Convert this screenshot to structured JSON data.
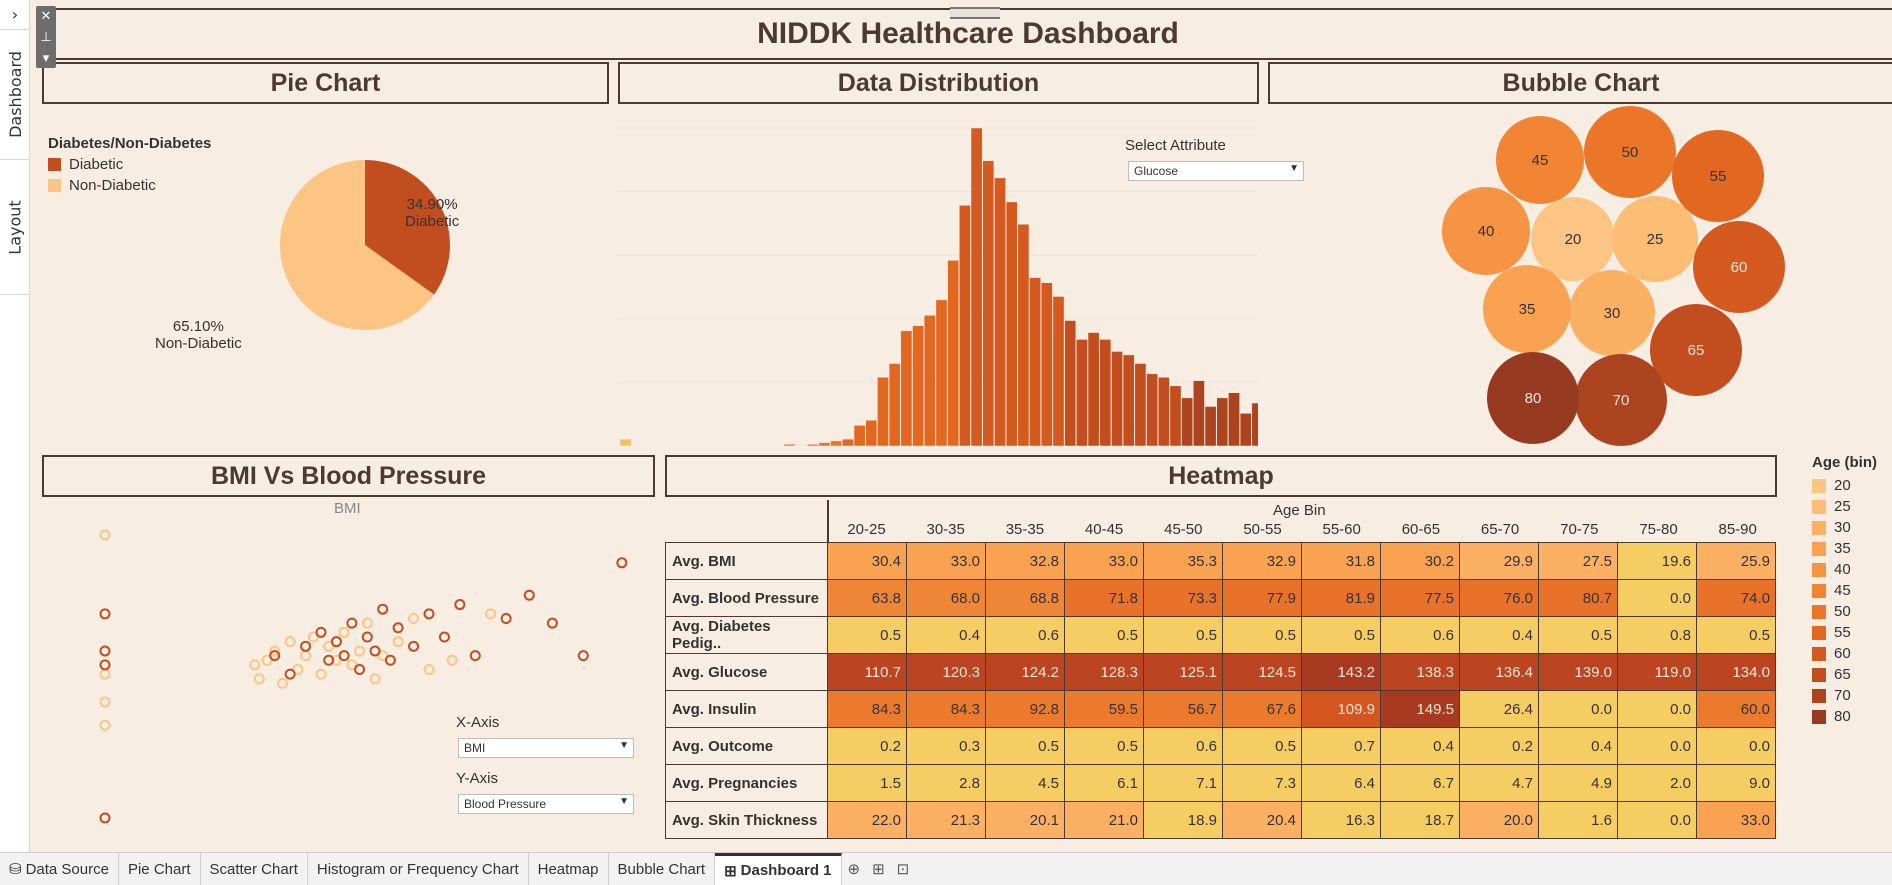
{
  "dashboard": {
    "title": "NIDDK Healthcare Dashboard",
    "rail": {
      "chevron": "›",
      "dashboard_tab": "Dashboard",
      "layout_tab": "Layout"
    },
    "floatbar": {
      "close": "✕",
      "pin": "⊥",
      "more": "▾"
    }
  },
  "pie": {
    "section_title": "Pie Chart",
    "legend_title": "Diabetes/Non-Diabetes",
    "legend": [
      {
        "label": "Diabetic",
        "color": "#c24e1f"
      },
      {
        "label": "Non-Diabetic",
        "color": "#fdc583"
      }
    ],
    "label_diabetic_pct": "34.90%",
    "label_diabetic": "Diabetic",
    "label_non_pct": "65.10%",
    "label_non": "Non-Diabetic"
  },
  "distribution": {
    "section_title": "Data Distribution",
    "select_label": "Select Attribute",
    "select_value": "Glucose"
  },
  "bubble": {
    "section_title": "Bubble Chart"
  },
  "scatter": {
    "section_title": "BMI Vs Blood Pressure",
    "axis_title": "BMI",
    "x_label": "X-Axis",
    "x_value": "BMI",
    "y_label": "Y-Axis",
    "y_value": "Blood Pressure"
  },
  "heatmap": {
    "section_title": "Heatmap",
    "column_header": "Age Bin",
    "columns": [
      "20-25",
      "30-35",
      "35-35",
      "40-45",
      "45-50",
      "50-55",
      "55-60",
      "60-65",
      "65-70",
      "70-75",
      "75-80",
      "85-90"
    ],
    "rows": [
      {
        "label": "Avg. BMI",
        "values": [
          "30.4",
          "33.0",
          "32.8",
          "33.0",
          "35.3",
          "32.9",
          "31.8",
          "30.2",
          "29.9",
          "27.5",
          "19.6",
          "25.9"
        ]
      },
      {
        "label": "Avg. Blood Pressure",
        "values": [
          "63.8",
          "68.0",
          "68.8",
          "71.8",
          "73.3",
          "77.9",
          "81.9",
          "77.5",
          "76.0",
          "80.7",
          "0.0",
          "74.0"
        ]
      },
      {
        "label": "Avg. Diabetes Pedig..",
        "values": [
          "0.5",
          "0.4",
          "0.6",
          "0.5",
          "0.5",
          "0.5",
          "0.5",
          "0.6",
          "0.4",
          "0.5",
          "0.8",
          "0.5"
        ]
      },
      {
        "label": "Avg. Glucose",
        "values": [
          "110.7",
          "120.3",
          "124.2",
          "128.3",
          "125.1",
          "124.5",
          "143.2",
          "138.3",
          "136.4",
          "139.0",
          "119.0",
          "134.0"
        ]
      },
      {
        "label": "Avg. Insulin",
        "values": [
          "84.3",
          "84.3",
          "92.8",
          "59.5",
          "56.7",
          "67.6",
          "109.9",
          "149.5",
          "26.4",
          "0.0",
          "0.0",
          "60.0"
        ]
      },
      {
        "label": "Avg. Outcome",
        "values": [
          "0.2",
          "0.3",
          "0.5",
          "0.5",
          "0.6",
          "0.5",
          "0.7",
          "0.4",
          "0.2",
          "0.4",
          "0.0",
          "0.0"
        ]
      },
      {
        "label": "Avg. Pregnancies",
        "values": [
          "1.5",
          "2.8",
          "4.5",
          "6.1",
          "7.1",
          "7.3",
          "6.4",
          "6.7",
          "4.7",
          "4.9",
          "2.0",
          "9.0"
        ]
      },
      {
        "label": "Avg. Skin Thickness",
        "values": [
          "22.0",
          "21.3",
          "20.1",
          "21.0",
          "18.9",
          "20.4",
          "16.3",
          "18.7",
          "20.0",
          "1.6",
          "0.0",
          "33.0"
        ]
      }
    ]
  },
  "age_legend": {
    "title": "Age (bin)",
    "items": [
      {
        "label": "20",
        "color": "#fdc583"
      },
      {
        "label": "25",
        "color": "#fcbd74"
      },
      {
        "label": "30",
        "color": "#fbb064"
      },
      {
        "label": "35",
        "color": "#f9a352"
      },
      {
        "label": "40",
        "color": "#f69443"
      },
      {
        "label": "45",
        "color": "#f28534"
      },
      {
        "label": "50",
        "color": "#ec7628"
      },
      {
        "label": "55",
        "color": "#e26822"
      },
      {
        "label": "60",
        "color": "#d45a1f"
      },
      {
        "label": "65",
        "color": "#c24e1f"
      },
      {
        "label": "70",
        "color": "#ad4420"
      },
      {
        "label": "80",
        "color": "#963a22"
      }
    ]
  },
  "tabs": {
    "items": [
      "Data Source",
      "Pie Chart",
      "Scatter Chart",
      "Histogram or Frequency Chart",
      "Heatmap",
      "Bubble Chart",
      "Dashboard 1"
    ],
    "active": "Dashboard 1",
    "icons": {
      "datasource": "⛁",
      "dashboard": "⊞",
      "new_sheet": "⊕",
      "new_dashboard": "⊞",
      "new_story": "⊡"
    }
  },
  "chart_data": [
    {
      "type": "pie",
      "categories": [
        "Diabetic",
        "Non-Diabetic"
      ],
      "values": [
        34.9,
        65.1
      ]
    },
    {
      "type": "bar",
      "values": [
        4,
        0,
        0,
        0,
        0,
        0,
        0,
        0,
        0,
        0,
        0,
        0,
        0,
        0,
        1,
        0,
        1,
        2,
        3,
        4,
        12,
        15,
        40,
        48,
        67,
        70,
        76,
        85,
        108,
        140,
        185,
        166,
        156,
        142,
        129,
        98,
        95,
        87,
        73,
        62,
        66,
        62,
        55,
        53,
        48,
        42,
        40,
        35,
        28,
        38,
        23,
        28,
        31,
        19,
        25,
        20,
        17
      ]
    },
    {
      "type": "scatter",
      "categories": [
        "20",
        "25",
        "30",
        "35",
        "40",
        "45",
        "50",
        "55",
        "60",
        "65",
        "70",
        "80"
      ],
      "values": [
        20,
        25,
        30,
        35,
        40,
        45,
        50,
        55,
        60,
        65,
        70,
        80
      ]
    },
    {
      "type": "scatter",
      "xlabel": "BMI",
      "series": [
        {
          "name": "Non-Diabetic",
          "points": [
            [
              0,
              122
            ],
            [
              0,
              62
            ],
            [
              0,
              50
            ],
            [
              0,
              40
            ],
            [
              0,
              0
            ],
            [
              19.4,
              66
            ],
            [
              20,
              60
            ],
            [
              21,
              68
            ],
            [
              22,
              72
            ],
            [
              23,
              58
            ],
            [
              24,
              76
            ],
            [
              25,
              64
            ],
            [
              26,
              70
            ],
            [
              27,
              78
            ],
            [
              28,
              62
            ],
            [
              29,
              74
            ],
            [
              30,
              68
            ],
            [
              31,
              80
            ],
            [
              32,
              66
            ],
            [
              33,
              72
            ],
            [
              34,
              84
            ],
            [
              35,
              60
            ],
            [
              36,
              70
            ],
            [
              38,
              76
            ],
            [
              40,
              86
            ],
            [
              42,
              64
            ],
            [
              45,
              68
            ],
            [
              50,
              88
            ]
          ]
        },
        {
          "name": "Diabetic",
          "points": [
            [
              0,
              88
            ],
            [
              0,
              72
            ],
            [
              0,
              66
            ],
            [
              0,
              0
            ],
            [
              22,
              70
            ],
            [
              24,
              62
            ],
            [
              26,
              74
            ],
            [
              28,
              80
            ],
            [
              29,
              68
            ],
            [
              30,
              76
            ],
            [
              31,
              70
            ],
            [
              32,
              84
            ],
            [
              33,
              64
            ],
            [
              34,
              78
            ],
            [
              35,
              72
            ],
            [
              36,
              90
            ],
            [
              37,
              68
            ],
            [
              38,
              82
            ],
            [
              40,
              74
            ],
            [
              42,
              88
            ],
            [
              44,
              78
            ],
            [
              46,
              92
            ],
            [
              48,
              70
            ],
            [
              52,
              86
            ],
            [
              55,
              96
            ],
            [
              58,
              84
            ],
            [
              62,
              70
            ],
            [
              67,
              110
            ]
          ]
        }
      ]
    },
    {
      "type": "heatmap",
      "title": "Heatmap"
    }
  ]
}
